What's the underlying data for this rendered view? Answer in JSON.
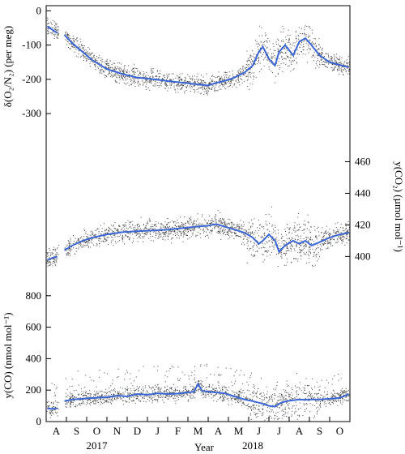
{
  "chart_data": {
    "type": "scatter",
    "xlabel": "Year",
    "x_months": [
      "A",
      "S",
      "O",
      "N",
      "D",
      "J",
      "F",
      "M",
      "A",
      "M",
      "J",
      "J",
      "A",
      "S",
      "O"
    ],
    "x_years": [
      "2017",
      "2018"
    ],
    "grid": false,
    "legend": "none",
    "panels": [
      {
        "name": "o2n2",
        "ylabel": "δ(O₂/N₂) (per meg)",
        "ylim": [
          -340,
          15
        ],
        "yticks": [
          "0",
          "-100",
          "-200",
          "-300"
        ],
        "ytick_values": [
          0,
          -100,
          -200,
          -300
        ],
        "axis_side": "left",
        "gap_between": [
          0.6,
          0.9
        ],
        "blue_line": [
          [
            0.05,
            -45
          ],
          [
            0.3,
            -55
          ],
          [
            0.55,
            -65
          ],
          [
            0.9,
            -70
          ],
          [
            1.3,
            -95
          ],
          [
            1.8,
            -120
          ],
          [
            2.3,
            -145
          ],
          [
            3.0,
            -170
          ],
          [
            3.8,
            -185
          ],
          [
            4.5,
            -195
          ],
          [
            5.3,
            -200
          ],
          [
            6.0,
            -205
          ],
          [
            6.8,
            -210
          ],
          [
            7.5,
            -215
          ],
          [
            8.0,
            -218
          ],
          [
            8.4,
            -210
          ],
          [
            8.8,
            -205
          ],
          [
            9.3,
            -195
          ],
          [
            9.8,
            -180
          ],
          [
            10.2,
            -160
          ],
          [
            10.5,
            -120
          ],
          [
            10.7,
            -105
          ],
          [
            11.0,
            -140
          ],
          [
            11.3,
            -160
          ],
          [
            11.5,
            -120
          ],
          [
            11.8,
            -100
          ],
          [
            12.2,
            -130
          ],
          [
            12.5,
            -90
          ],
          [
            12.8,
            -80
          ],
          [
            13.1,
            -100
          ],
          [
            13.5,
            -130
          ],
          [
            14.0,
            -150
          ],
          [
            14.5,
            -158
          ],
          [
            14.95,
            -165
          ]
        ]
      },
      {
        "name": "co2",
        "ylabel": "y(CO₂) (µmol mol⁻¹)",
        "ylim": [
          393,
          470
        ],
        "yticks": [
          "400",
          "420",
          "440",
          "460"
        ],
        "ytick_values": [
          400,
          420,
          440,
          460
        ],
        "axis_side": "right",
        "gap_between": [
          0.6,
          0.9
        ],
        "blue_line": [
          [
            0.05,
            398
          ],
          [
            0.3,
            399
          ],
          [
            0.55,
            400
          ],
          [
            0.9,
            404
          ],
          [
            1.3,
            407
          ],
          [
            1.8,
            410
          ],
          [
            2.3,
            412
          ],
          [
            3.0,
            414
          ],
          [
            3.8,
            415.5
          ],
          [
            4.5,
            416
          ],
          [
            5.3,
            416.5
          ],
          [
            6.0,
            417
          ],
          [
            6.8,
            418
          ],
          [
            7.5,
            419
          ],
          [
            8.0,
            419.5
          ],
          [
            8.4,
            420.5
          ],
          [
            8.8,
            419
          ],
          [
            9.3,
            417
          ],
          [
            9.8,
            415
          ],
          [
            10.2,
            412
          ],
          [
            10.5,
            408
          ],
          [
            10.7,
            410
          ],
          [
            11.0,
            414
          ],
          [
            11.3,
            410
          ],
          [
            11.5,
            403
          ],
          [
            11.8,
            407
          ],
          [
            12.2,
            410
          ],
          [
            12.5,
            408
          ],
          [
            12.8,
            410
          ],
          [
            13.1,
            407
          ],
          [
            13.5,
            409
          ],
          [
            14.0,
            412
          ],
          [
            14.5,
            414
          ],
          [
            14.95,
            415
          ]
        ]
      },
      {
        "name": "co",
        "ylabel": "y(CO) (nmol mol⁻¹)",
        "ylim": [
          0,
          840
        ],
        "yticks": [
          "0",
          "200",
          "400",
          "600",
          "800"
        ],
        "ytick_values": [
          0,
          200,
          400,
          600,
          800
        ],
        "axis_side": "left",
        "gap_between": [
          0.6,
          0.9
        ],
        "blue_line": [
          [
            0.05,
            85
          ],
          [
            0.3,
            80
          ],
          [
            0.55,
            85
          ],
          [
            0.9,
            130
          ],
          [
            1.3,
            140
          ],
          [
            1.8,
            145
          ],
          [
            2.3,
            150
          ],
          [
            3.0,
            155
          ],
          [
            3.5,
            165
          ],
          [
            4.0,
            160
          ],
          [
            4.5,
            175
          ],
          [
            5.0,
            170
          ],
          [
            5.5,
            180
          ],
          [
            6.0,
            175
          ],
          [
            6.5,
            178
          ],
          [
            7.0,
            185
          ],
          [
            7.3,
            190
          ],
          [
            7.5,
            240
          ],
          [
            7.7,
            195
          ],
          [
            8.0,
            190
          ],
          [
            8.4,
            185
          ],
          [
            8.8,
            180
          ],
          [
            9.3,
            160
          ],
          [
            9.8,
            140
          ],
          [
            10.2,
            130
          ],
          [
            10.5,
            120
          ],
          [
            10.8,
            110
          ],
          [
            11.0,
            100
          ],
          [
            11.3,
            95
          ],
          [
            11.6,
            120
          ],
          [
            11.9,
            130
          ],
          [
            12.2,
            135
          ],
          [
            12.5,
            140
          ],
          [
            12.8,
            138
          ],
          [
            13.1,
            140
          ],
          [
            13.5,
            140
          ],
          [
            14.0,
            145
          ],
          [
            14.5,
            150
          ],
          [
            14.95,
            175
          ]
        ]
      }
    ]
  }
}
